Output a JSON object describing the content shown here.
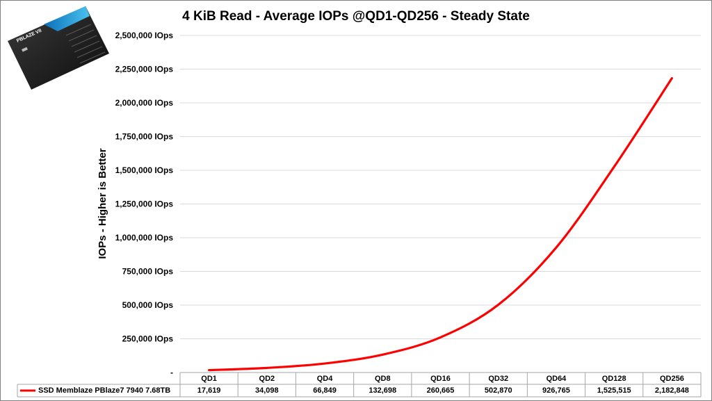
{
  "chart_data": {
    "type": "line",
    "title": "4 KiB Read - Average IOPs @QD1-QD256 - Steady State",
    "ylabel": "IOPs  - Higher is Better",
    "xlabel": "",
    "ylim": [
      0,
      2500000
    ],
    "yticks": [
      "-",
      "250,000 IOps",
      "500,000 IOps",
      "750,000 IOps",
      "1,000,000 IOps",
      "1,250,000 IOps",
      "1,500,000 IOps",
      "1,750,000 IOps",
      "2,000,000 IOps",
      "2,250,000 IOps",
      "2,500,000 IOps"
    ],
    "categories": [
      "QD1",
      "QD2",
      "QD4",
      "QD8",
      "QD16",
      "QD32",
      "QD64",
      "QD128",
      "QD256"
    ],
    "grid": true,
    "legend": "data-table-left",
    "series": [
      {
        "name": "SSD Memblaze PBlaze7 7940 7.68TB",
        "color": "#ff0000",
        "values": [
          17619,
          34098,
          66849,
          132698,
          260665,
          502870,
          926765,
          1525515,
          2182848
        ],
        "labels": [
          "17,619",
          "34,098",
          "66,849",
          "132,698",
          "260,665",
          "502,870",
          "926,765",
          "1,525,515",
          "2,182,848"
        ]
      }
    ]
  },
  "product_image": {
    "name": "ssd-drive-image",
    "label": "PBLAZE VII"
  }
}
